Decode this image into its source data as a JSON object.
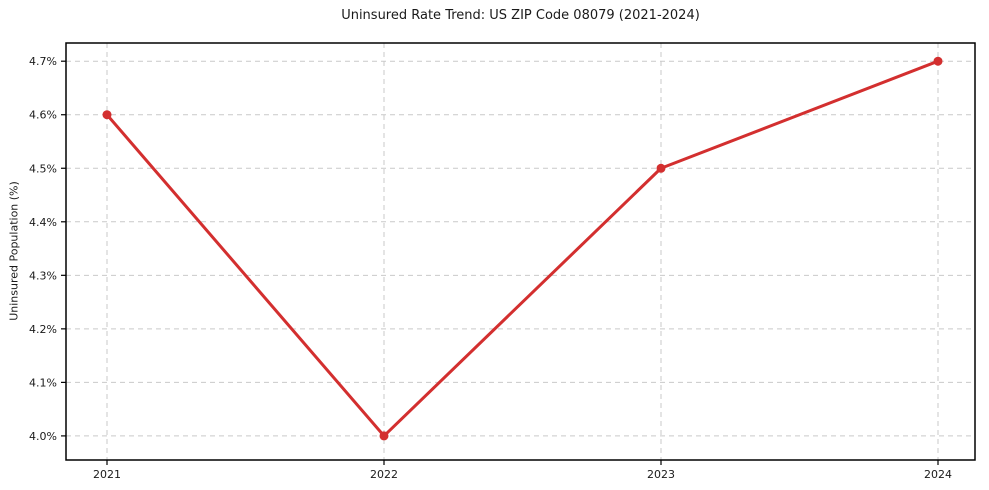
{
  "chart_data": {
    "type": "line",
    "title": "Uninsured Rate Trend: US ZIP Code 08079 (2021-2024)",
    "xlabel": "",
    "ylabel": "Uninsured Population (%)",
    "categories": [
      "2021",
      "2022",
      "2023",
      "2024"
    ],
    "series": [
      {
        "name": "Uninsured Rate",
        "values": [
          4.6,
          4.0,
          4.5,
          4.7
        ]
      }
    ],
    "y_ticks": [
      4.0,
      4.1,
      4.2,
      4.3,
      4.4,
      4.5,
      4.6,
      4.7
    ],
    "y_tick_labels": [
      "4.0%",
      "4.1%",
      "4.2%",
      "4.3%",
      "4.4%",
      "4.5%",
      "4.6%",
      "4.7%"
    ],
    "ylim": [
      3.955,
      4.734
    ],
    "grid": true,
    "legend": "none",
    "colors": {
      "line": "#d32f2f",
      "marker": "#d32f2f",
      "grid": "#c9c9c9",
      "axis": "#000000",
      "text": "#1a1a1a",
      "background": "#ffffff"
    }
  }
}
